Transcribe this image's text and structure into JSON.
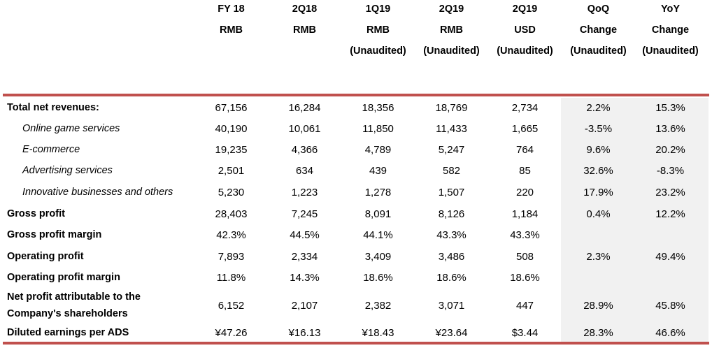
{
  "columns": [
    {
      "lines": [
        "FY 18",
        "RMB"
      ]
    },
    {
      "lines": [
        "2Q18",
        "RMB"
      ]
    },
    {
      "lines": [
        "1Q19",
        "RMB",
        "(Unaudited)"
      ]
    },
    {
      "lines": [
        "2Q19",
        "RMB",
        "(Unaudited)"
      ]
    },
    {
      "lines": [
        "2Q19",
        "USD",
        "(Unaudited)"
      ]
    },
    {
      "lines": [
        "QoQ",
        "Change",
        "(Unaudited)"
      ]
    },
    {
      "lines": [
        "YoY",
        "Change",
        "(Unaudited)"
      ]
    }
  ],
  "rows": [
    {
      "label": "Total net revenues:",
      "style": "b",
      "values": [
        "67,156",
        "16,284",
        "18,356",
        "18,769",
        "2,734",
        "2.2%",
        "15.3%"
      ]
    },
    {
      "label": "Online game services",
      "style": "i",
      "values": [
        "40,190",
        "10,061",
        "11,850",
        "11,433",
        "1,665",
        "-3.5%",
        "13.6%"
      ]
    },
    {
      "label": "E-commerce",
      "style": "i",
      "values": [
        "19,235",
        "4,366",
        "4,789",
        "5,247",
        "764",
        "9.6%",
        "20.2%"
      ]
    },
    {
      "label": "Advertising services",
      "style": "i",
      "values": [
        "2,501",
        "634",
        "439",
        "582",
        "85",
        "32.6%",
        "-8.3%"
      ]
    },
    {
      "label": "Innovative businesses and others",
      "style": "i",
      "values": [
        "5,230",
        "1,223",
        "1,278",
        "1,507",
        "220",
        "17.9%",
        "23.2%"
      ]
    },
    {
      "label": "Gross profit",
      "style": "b",
      "values": [
        "28,403",
        "7,245",
        "8,091",
        "8,126",
        "1,184",
        "0.4%",
        "12.2%"
      ]
    },
    {
      "label": "Gross profit margin",
      "style": "b",
      "values": [
        "42.3%",
        "44.5%",
        "44.1%",
        "43.3%",
        "43.3%",
        "",
        ""
      ]
    },
    {
      "label": "Operating profit",
      "style": "b",
      "values": [
        "7,893",
        "2,334",
        "3,409",
        "3,486",
        "508",
        "2.3%",
        "49.4%"
      ]
    },
    {
      "label": "Operating profit margin",
      "style": "b",
      "values": [
        "11.8%",
        "14.3%",
        "18.6%",
        "18.6%",
        "18.6%",
        "",
        ""
      ]
    },
    {
      "label": "Net profit attributable to the Company's shareholders",
      "style": "b",
      "values": [
        "6,152",
        "2,107",
        "2,382",
        "3,071",
        "447",
        "28.9%",
        "45.8%"
      ]
    },
    {
      "label": "Diluted earnings per ADS",
      "style": "b",
      "values": [
        "¥47.26",
        "¥16.13",
        "¥18.43",
        "¥23.64",
        "$3.44",
        "28.3%",
        "46.6%"
      ]
    }
  ],
  "colors": {
    "rule": "#c0504d",
    "shade": "#f1f1f1"
  }
}
